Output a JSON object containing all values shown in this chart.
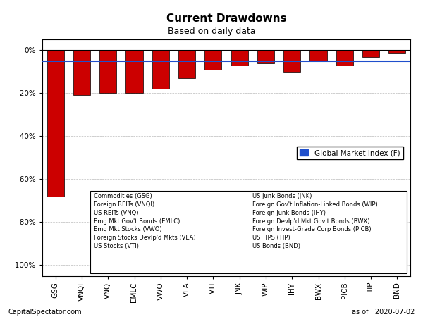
{
  "title": "Current Drawdowns",
  "subtitle": "Based on daily data",
  "categories": [
    "GSG",
    "VNQI",
    "VNQ",
    "EMLC",
    "VWO",
    "VEA",
    "VTI",
    "JNK",
    "WIP",
    "IHY",
    "BWX",
    "PICB",
    "TIP",
    "BND"
  ],
  "values": [
    -68.0,
    -21.0,
    -20.0,
    -20.0,
    -18.0,
    -13.0,
    -9.0,
    -7.0,
    -6.0,
    -10.0,
    -5.0,
    -7.0,
    -3.0,
    -1.0
  ],
  "bar_color": "#cc0000",
  "bar_edge_color": "#000000",
  "gmi_value": -5.0,
  "gmi_color": "#1f4fcc",
  "ylim": [
    -105,
    5
  ],
  "yticks": [
    0,
    -20,
    -40,
    -60,
    -80,
    -100
  ],
  "background_color": "#ffffff",
  "grid_color": "#aaaaaa",
  "title_fontsize": 11,
  "subtitle_fontsize": 9,
  "tick_fontsize": 7.5,
  "footer_left": "CapitalSpectator.com",
  "footer_right": "as of   2020-07-02",
  "legend_text": "Global Market Index (F)",
  "legend_items_left": [
    "Commodities (GSG)",
    "Foreign REITs (VNQI)",
    "US REITs (VNQ)",
    "Emg Mkt Gov't Bonds (EMLC)",
    "Emg Mkt Stocks (VWO)",
    "Foreign Stocks Devlp'd Mkts (VEA)",
    "US Stocks (VTI)"
  ],
  "legend_items_right": [
    "US Junk Bonds (JNK)",
    "Foreign Gov't Inflation-Linked Bonds (WIP)",
    "Foreign Junk Bonds (IHY)",
    "Foreign Devlp'd Mkt Gov't Bonds (BWX)",
    "Foreign Invest-Grade Corp Bonds (PICB)",
    "US TIPS (TIP)",
    "US Bonds (BND)"
  ]
}
